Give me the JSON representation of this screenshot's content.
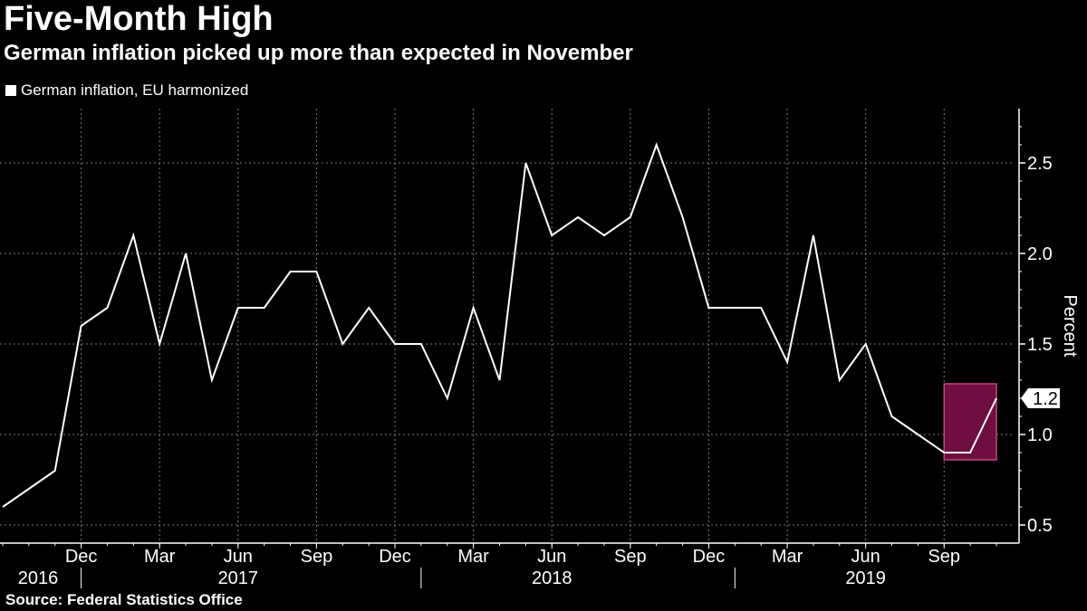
{
  "title": "Five-Month High",
  "subtitle": "German inflation picked up more than expected in November",
  "source": "Source: Federal Statistics Office",
  "legend": {
    "label": "German inflation, EU harmonized",
    "color": "#ffffff"
  },
  "colors": {
    "background": "#000000",
    "line": "#ffffff",
    "highlight_fill": "#6e0f3f",
    "highlight_stroke": "#c2457f"
  },
  "chart_data": {
    "type": "line",
    "title": "Five-Month High",
    "subtitle": "German inflation picked up more than expected in November",
    "ylabel": "Percent",
    "ylim": [
      0.4,
      2.8
    ],
    "y_ticks": [
      0.5,
      1.0,
      1.5,
      2.0,
      2.5
    ],
    "y_tick_labels": [
      "0.5",
      "1.0",
      "1.5",
      "2.0",
      "2.5"
    ],
    "x_start": "2016-09",
    "x_end": "2019-11",
    "month_ticks": [
      {
        "date": "2016-12",
        "label": "Dec"
      },
      {
        "date": "2017-03",
        "label": "Mar"
      },
      {
        "date": "2017-06",
        "label": "Jun"
      },
      {
        "date": "2017-09",
        "label": "Sep"
      },
      {
        "date": "2017-12",
        "label": "Dec"
      },
      {
        "date": "2018-03",
        "label": "Mar"
      },
      {
        "date": "2018-06",
        "label": "Jun"
      },
      {
        "date": "2018-09",
        "label": "Sep"
      },
      {
        "date": "2018-12",
        "label": "Dec"
      },
      {
        "date": "2019-03",
        "label": "Mar"
      },
      {
        "date": "2019-06",
        "label": "Jun"
      },
      {
        "date": "2019-09",
        "label": "Sep"
      }
    ],
    "year_labels": [
      {
        "label": "2016",
        "date": "2016-10"
      },
      {
        "label": "2017",
        "date": "2017-06"
      },
      {
        "label": "2018",
        "date": "2018-06"
      },
      {
        "label": "2019",
        "date": "2019-06"
      }
    ],
    "year_separators": [
      "2016-12",
      "2018-01",
      "2019-01"
    ],
    "series": [
      {
        "name": "German inflation, EU harmonized",
        "x": [
          "2016-09",
          "2016-10",
          "2016-11",
          "2016-12",
          "2017-01",
          "2017-02",
          "2017-03",
          "2017-04",
          "2017-05",
          "2017-06",
          "2017-07",
          "2017-08",
          "2017-09",
          "2017-10",
          "2017-11",
          "2017-12",
          "2018-01",
          "2018-02",
          "2018-03",
          "2018-04",
          "2018-05",
          "2018-06",
          "2018-07",
          "2018-08",
          "2018-09",
          "2018-10",
          "2018-11",
          "2018-12",
          "2019-01",
          "2019-02",
          "2019-03",
          "2019-04",
          "2019-05",
          "2019-06",
          "2019-07",
          "2019-08",
          "2019-09",
          "2019-10",
          "2019-11"
        ],
        "values": [
          0.6,
          0.7,
          0.8,
          1.6,
          1.7,
          2.1,
          1.5,
          2.0,
          1.3,
          1.7,
          1.7,
          1.9,
          1.9,
          1.5,
          1.7,
          1.5,
          1.5,
          1.2,
          1.7,
          1.3,
          2.5,
          2.1,
          2.2,
          2.1,
          2.2,
          2.6,
          2.2,
          1.7,
          1.7,
          1.7,
          1.4,
          2.1,
          1.3,
          1.5,
          1.1,
          1.0,
          0.9,
          0.9,
          1.2
        ]
      }
    ],
    "last_value_label": "1.2",
    "highlight": {
      "x_from": "2019-09",
      "x_to": "2019-11",
      "y_from": 0.86,
      "y_to": 1.28
    }
  }
}
